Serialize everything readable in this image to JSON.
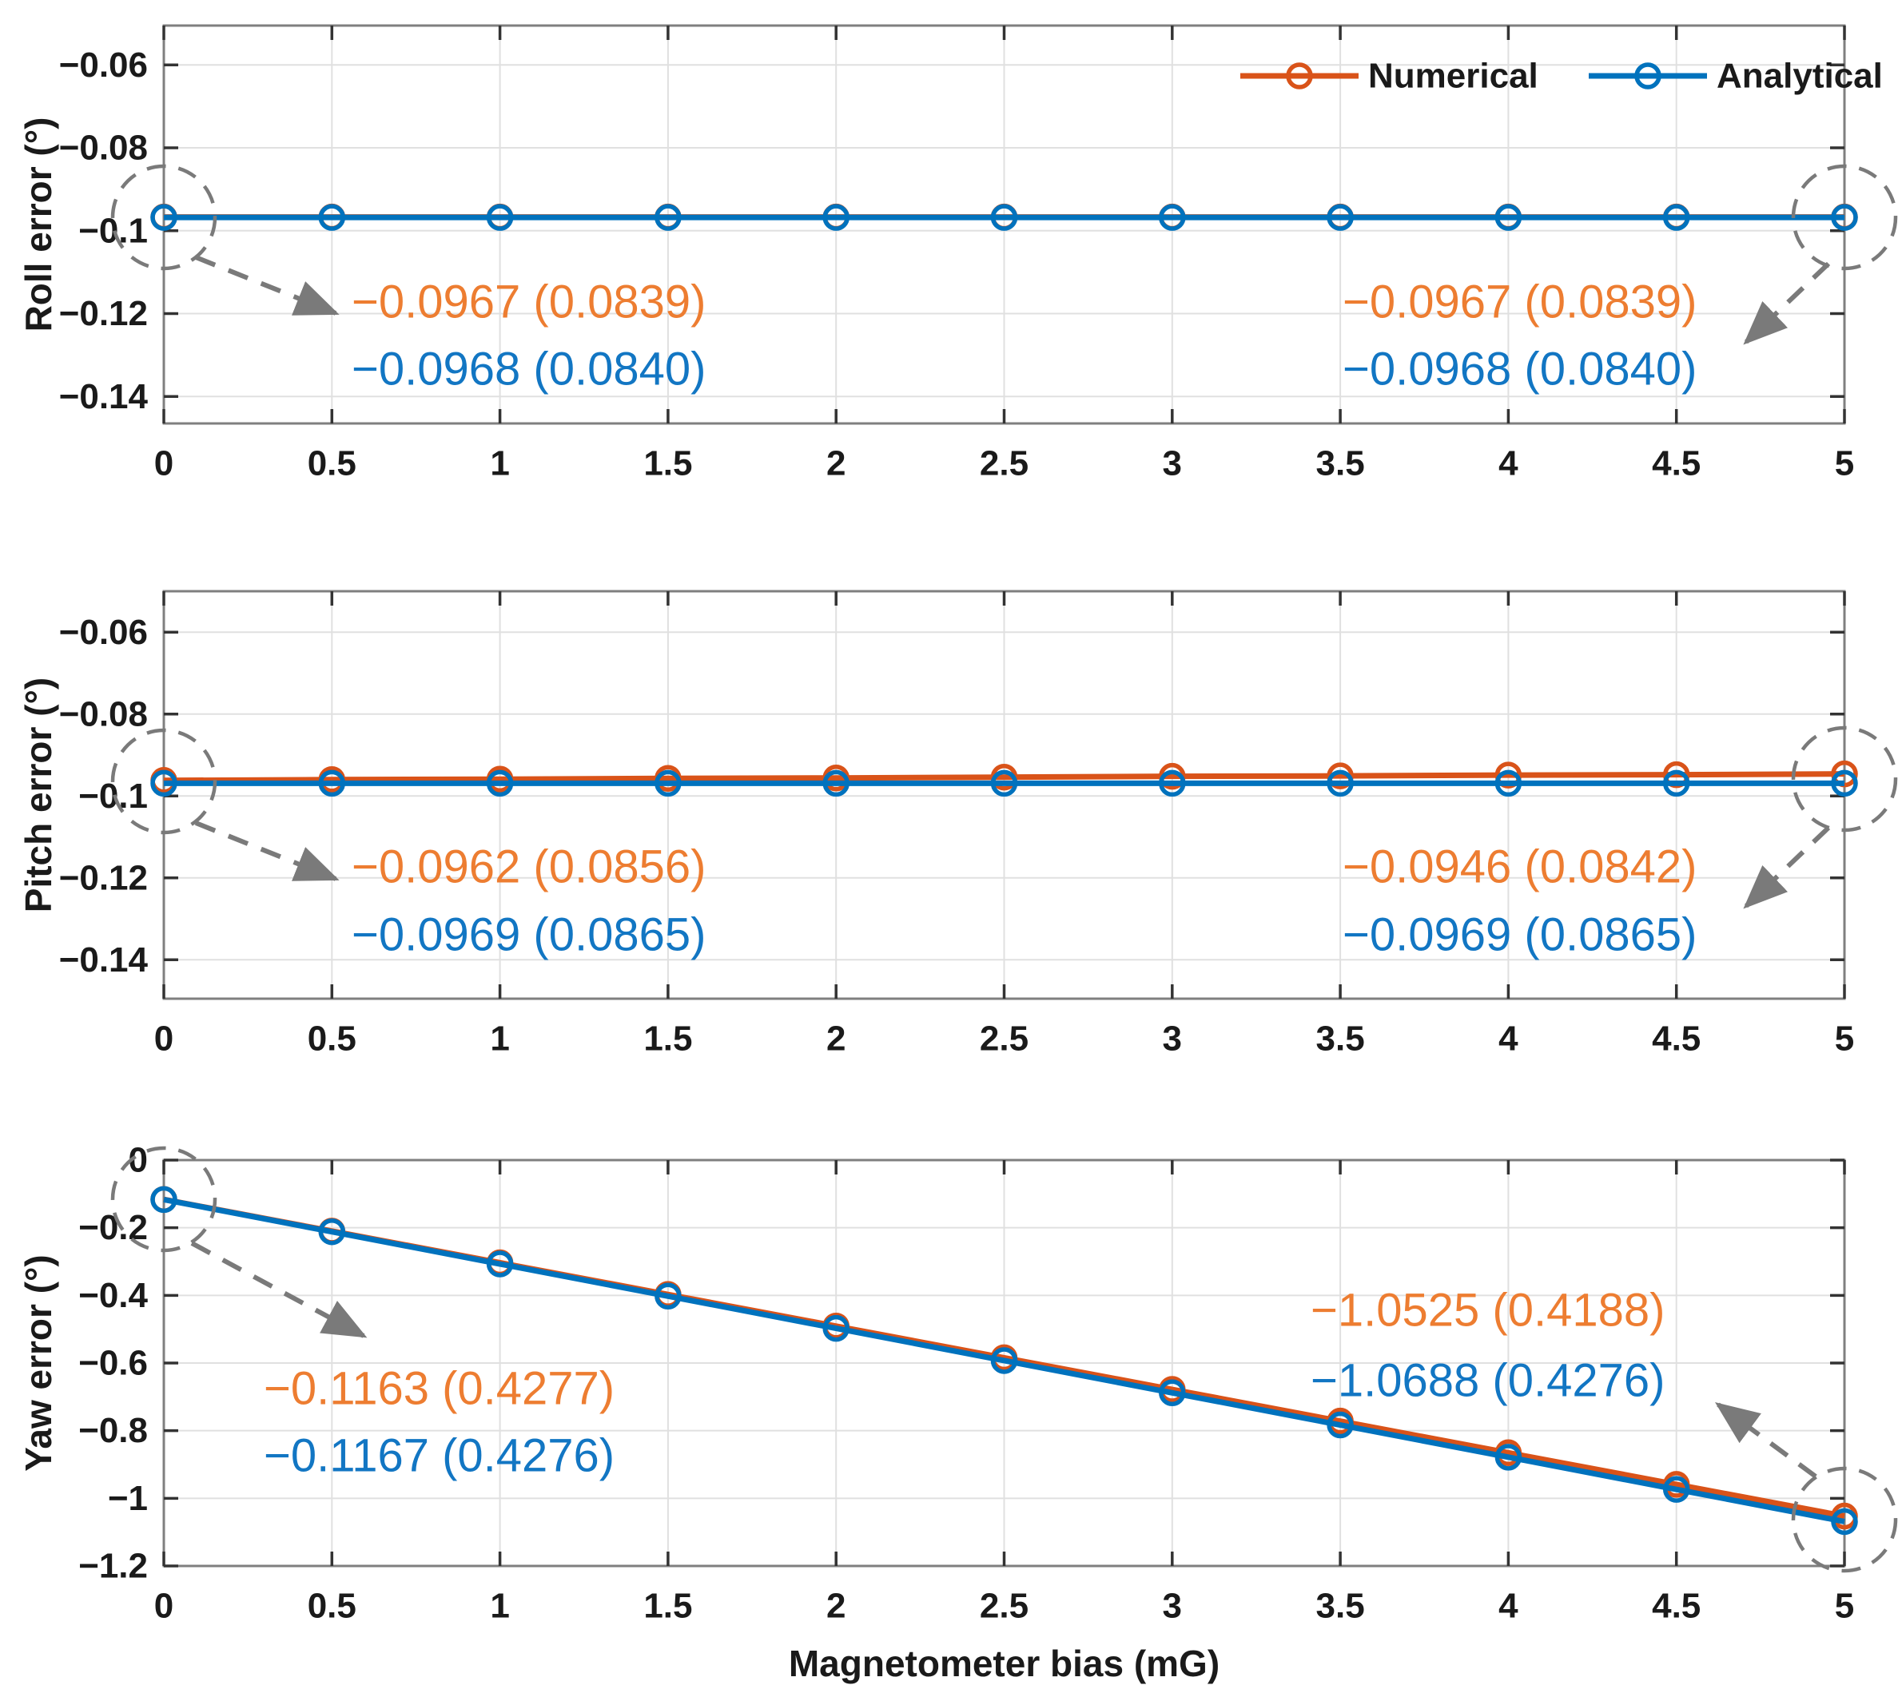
{
  "style": {
    "background": "#FFFFFF",
    "colors": {
      "numerical": "#D95319",
      "analytical": "#0072BD",
      "annotation_numerical": "#ED7D31",
      "annotation_analytical": "#1276C3",
      "grid": "#E0E0E0",
      "frame": "#7F7F7F",
      "tick": "#333333",
      "text": "#1A1A1A",
      "callout": "#7A7A7A"
    }
  },
  "figure": {
    "xlabel": "Magnetometer bias (mG)",
    "xticks": {
      "values": [
        0,
        0.5,
        1,
        1.5,
        2,
        2.5,
        3,
        3.5,
        4,
        4.5,
        5
      ],
      "labels": [
        "0",
        "0.5",
        "1",
        "1.5",
        "2",
        "2.5",
        "3",
        "3.5",
        "4",
        "4.5",
        "5"
      ]
    },
    "legend": [
      {
        "label": "Numerical",
        "series": "numerical"
      },
      {
        "label": "Analytical",
        "series": "analytical"
      }
    ]
  },
  "chart_data": [
    {
      "id": "roll",
      "type": "line",
      "ylabel": "Roll error (°)",
      "ylim": [
        -0.1465,
        -0.0505
      ],
      "yticks": {
        "values": [
          -0.06,
          -0.08,
          -0.1,
          -0.12,
          -0.14
        ],
        "labels": [
          "−0.06",
          "−0.08",
          "−0.1",
          "−0.12",
          "−0.14"
        ]
      },
      "x": [
        0,
        0.5,
        1,
        1.5,
        2,
        2.5,
        3,
        3.5,
        4,
        4.5,
        5
      ],
      "series": [
        {
          "name": "Numerical",
          "key": "numerical",
          "values": [
            -0.0967,
            -0.0967,
            -0.0967,
            -0.0967,
            -0.0967,
            -0.0967,
            -0.0967,
            -0.0967,
            -0.0967,
            -0.0967,
            -0.0967
          ]
        },
        {
          "name": "Analytical",
          "key": "analytical",
          "values": [
            -0.0968,
            -0.0968,
            -0.0968,
            -0.0968,
            -0.0968,
            -0.0968,
            -0.0968,
            -0.0968,
            -0.0968,
            -0.0968,
            -0.0968
          ]
        }
      ],
      "annotations": [
        {
          "position": "start",
          "numerical": "−0.0967 (0.0839)",
          "analytical": "−0.0968 (0.0840)"
        },
        {
          "position": "end",
          "numerical": "−0.0967 (0.0839)",
          "analytical": "−0.0968 (0.0840)"
        }
      ]
    },
    {
      "id": "pitch",
      "type": "line",
      "ylabel": "Pitch error (°)",
      "ylim": [
        -0.1495,
        -0.05
      ],
      "yticks": {
        "values": [
          -0.06,
          -0.08,
          -0.1,
          -0.12,
          -0.14
        ],
        "labels": [
          "−0.06",
          "−0.08",
          "−0.1",
          "−0.12",
          "−0.14"
        ]
      },
      "x": [
        0,
        0.5,
        1,
        1.5,
        2,
        2.5,
        3,
        3.5,
        4,
        4.5,
        5
      ],
      "series": [
        {
          "name": "Numerical",
          "key": "numerical",
          "values": [
            -0.0962,
            -0.096,
            -0.0959,
            -0.0957,
            -0.0956,
            -0.0954,
            -0.0952,
            -0.0951,
            -0.0949,
            -0.0948,
            -0.0946
          ]
        },
        {
          "name": "Analytical",
          "key": "analytical",
          "values": [
            -0.0969,
            -0.0969,
            -0.0969,
            -0.0969,
            -0.0969,
            -0.0969,
            -0.0969,
            -0.0969,
            -0.0969,
            -0.0969,
            -0.0969
          ]
        }
      ],
      "annotations": [
        {
          "position": "start",
          "numerical": "−0.0962 (0.0856)",
          "analytical": "−0.0969 (0.0865)"
        },
        {
          "position": "end",
          "numerical": "−0.0946 (0.0842)",
          "analytical": "−0.0969 (0.0865)"
        }
      ]
    },
    {
      "id": "yaw",
      "type": "line",
      "ylabel": "Yaw error (°)",
      "ylim": [
        -1.2,
        0
      ],
      "yticks": {
        "values": [
          0,
          -0.2,
          -0.4,
          -0.6,
          -0.8,
          -1,
          -1.2
        ],
        "labels": [
          "0",
          "−0.2",
          "−0.4",
          "−0.6",
          "−0.8",
          "−1",
          "−1.2"
        ]
      },
      "x": [
        0,
        0.5,
        1,
        1.5,
        2,
        2.5,
        3,
        3.5,
        4,
        4.5,
        5
      ],
      "series": [
        {
          "name": "Numerical",
          "key": "numerical",
          "values": [
            -0.1163,
            -0.2099,
            -0.3035,
            -0.3972,
            -0.4908,
            -0.5844,
            -0.678,
            -0.7717,
            -0.8653,
            -0.9589,
            -1.0525
          ]
        },
        {
          "name": "Analytical",
          "key": "analytical",
          "values": [
            -0.1167,
            -0.2119,
            -0.3071,
            -0.4023,
            -0.4975,
            -0.5928,
            -0.688,
            -0.7832,
            -0.8784,
            -0.9736,
            -1.0688
          ]
        }
      ],
      "annotations": [
        {
          "position": "start",
          "numerical": "−0.1163 (0.4277)",
          "analytical": "−0.1167 (0.4276)"
        },
        {
          "position": "end",
          "numerical": "−1.0525 (0.4188)",
          "analytical": "−1.0688 (0.4276)"
        }
      ]
    }
  ]
}
